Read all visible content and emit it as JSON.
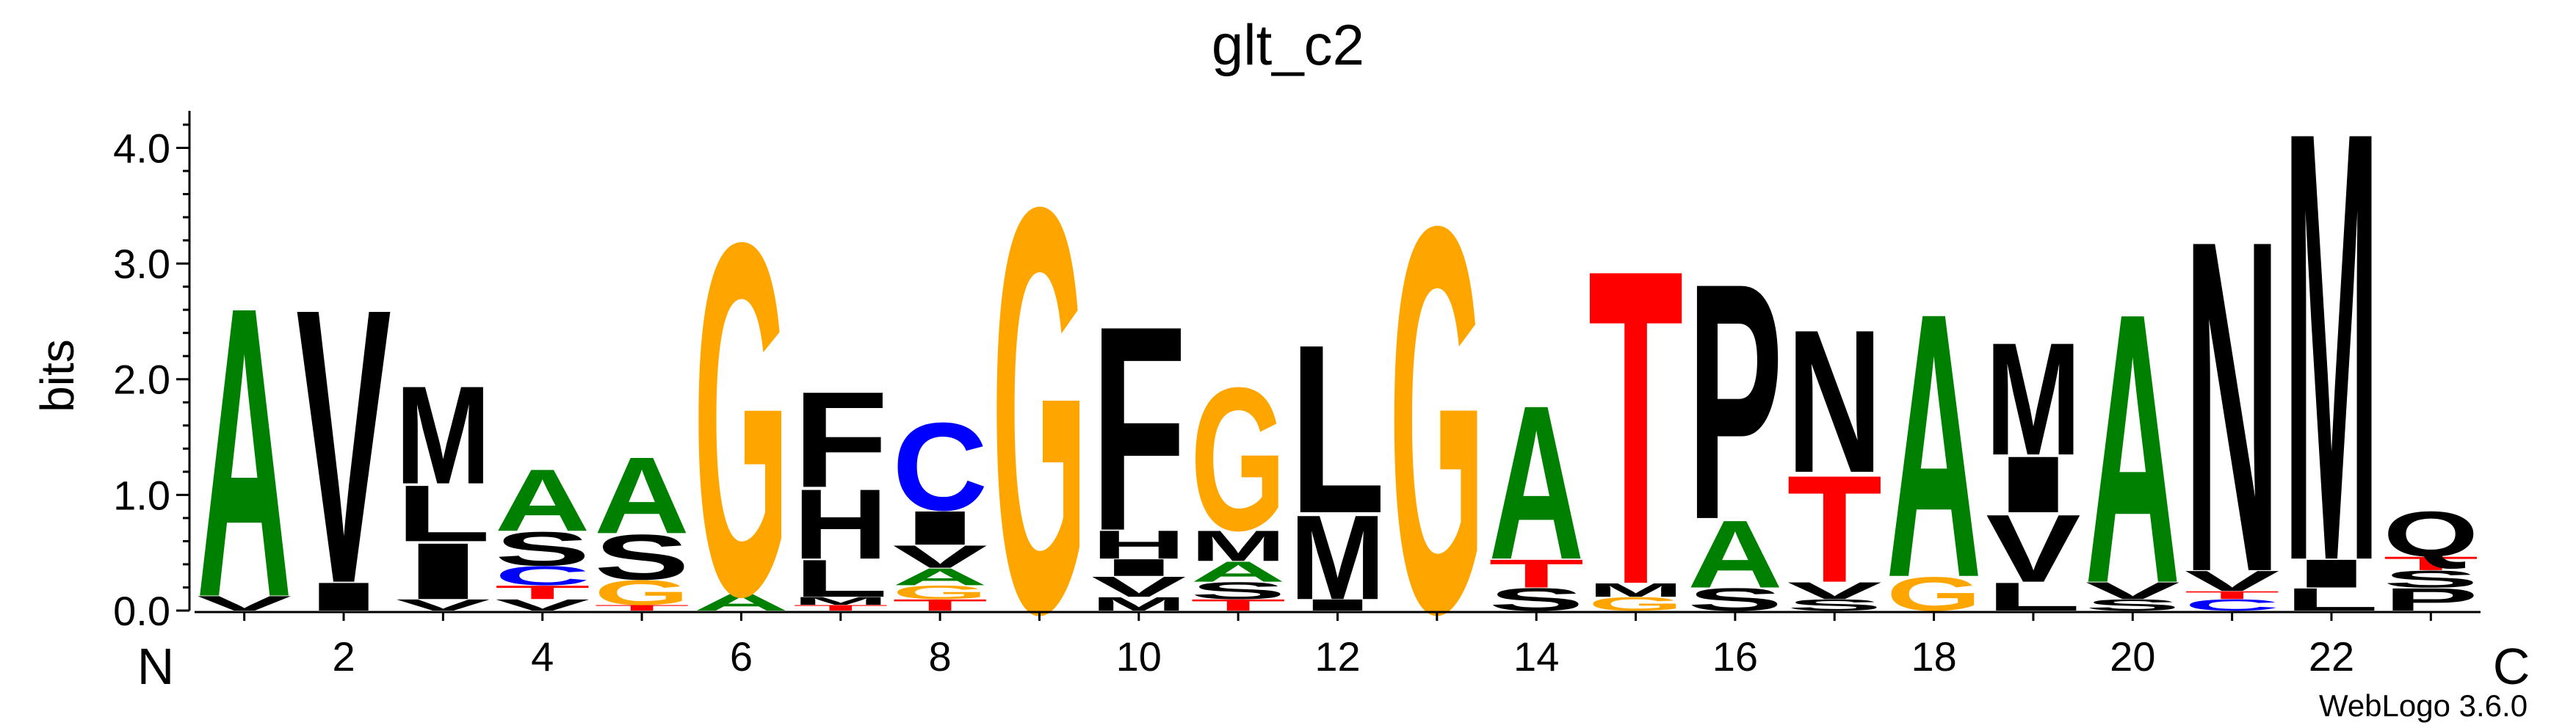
{
  "chart_data": {
    "type": "sequence-logo",
    "title": "glt_c2",
    "ylabel": "bits",
    "ylim": [
      0,
      4.32
    ],
    "yticks": [
      "0.0",
      "1.0",
      "2.0",
      "3.0",
      "4.0"
    ],
    "xticks": [
      "2",
      "4",
      "6",
      "8",
      "10",
      "12",
      "14",
      "16",
      "18",
      "20",
      "22"
    ],
    "n_terminal_label": "N",
    "c_terminal_label": "C",
    "footer": "WebLogo 3.6.0",
    "colors": {
      "A": "#008000",
      "G": "#ffa500",
      "C": "#0000ff",
      "T": "#ff0000",
      "S": "#000000",
      "V": "#000000",
      "L": "#000000",
      "M": "#000000",
      "I": "#000000",
      "F": "#000000",
      "H": "#000000",
      "P": "#000000",
      "N": "#000000",
      "Q": "#000000"
    },
    "positions": [
      {
        "pos": 1,
        "stack": [
          [
            "V",
            0.13
          ],
          [
            "A",
            2.58
          ]
        ]
      },
      {
        "pos": 2,
        "stack": [
          [
            "I",
            0.25
          ],
          [
            "V",
            2.44
          ]
        ]
      },
      {
        "pos": 3,
        "stack": [
          [
            "V",
            0.1
          ],
          [
            "I",
            0.5
          ],
          [
            "L",
            0.5
          ],
          [
            "M",
            0.87
          ]
        ]
      },
      {
        "pos": 4,
        "stack": [
          [
            "V",
            0.1
          ],
          [
            "T",
            0.12
          ],
          [
            "C",
            0.17
          ],
          [
            "S",
            0.3
          ],
          [
            "A",
            0.55
          ]
        ]
      },
      {
        "pos": 5,
        "stack": [
          [
            "T",
            0.05
          ],
          [
            "G",
            0.22
          ],
          [
            "S",
            0.4
          ],
          [
            "A",
            0.68
          ]
        ]
      },
      {
        "pos": 6,
        "stack": [
          [
            "A",
            0.15
          ],
          [
            "G",
            3.13
          ]
        ]
      },
      {
        "pos": 7,
        "stack": [
          [
            "T",
            0.05
          ],
          [
            "M",
            0.07
          ],
          [
            "L",
            0.33
          ],
          [
            "H",
            0.62
          ],
          [
            "F",
            0.85
          ]
        ]
      },
      {
        "pos": 8,
        "stack": [
          [
            "T",
            0.1
          ],
          [
            "G",
            0.12
          ],
          [
            "A",
            0.15
          ],
          [
            "V",
            0.2
          ],
          [
            "I",
            0.3
          ],
          [
            "C",
            0.78
          ]
        ]
      },
      {
        "pos": 9,
        "stack": [
          [
            "G",
            3.6
          ]
        ]
      },
      {
        "pos": 10,
        "stack": [
          [
            "M",
            0.12
          ],
          [
            "V",
            0.18
          ],
          [
            "I",
            0.15
          ],
          [
            "H",
            0.25
          ],
          [
            "F",
            1.82
          ]
        ]
      },
      {
        "pos": 11,
        "stack": [
          [
            "T",
            0.1
          ],
          [
            "S",
            0.15
          ],
          [
            "A",
            0.18
          ],
          [
            "M",
            0.27
          ],
          [
            "G",
            1.27
          ]
        ]
      },
      {
        "pos": 12,
        "stack": [
          [
            "I",
            0.1
          ],
          [
            "M",
            0.75
          ],
          [
            "L",
            1.5
          ]
        ]
      },
      {
        "pos": 13,
        "stack": [
          [
            "G",
            3.43
          ]
        ]
      },
      {
        "pos": 14,
        "stack": [
          [
            "S",
            0.2
          ],
          [
            "T",
            0.25
          ],
          [
            "A",
            1.37
          ]
        ]
      },
      {
        "pos": 15,
        "stack": [
          [
            "G",
            0.12
          ],
          [
            "M",
            0.12
          ],
          [
            "T",
            2.8
          ]
        ]
      },
      {
        "pos": 16,
        "stack": [
          [
            "S",
            0.2
          ],
          [
            "A",
            0.6
          ],
          [
            "P",
            2.1
          ]
        ]
      },
      {
        "pos": 17,
        "stack": [
          [
            "S",
            0.1
          ],
          [
            "V",
            0.15
          ],
          [
            "T",
            0.95
          ],
          [
            "N",
            1.27
          ]
        ]
      },
      {
        "pos": 18,
        "stack": [
          [
            "G",
            0.3
          ],
          [
            "A",
            2.35
          ]
        ]
      },
      {
        "pos": 19,
        "stack": [
          [
            "L",
            0.25
          ],
          [
            "V",
            0.6
          ],
          [
            "I",
            0.5
          ],
          [
            "M",
            1.0
          ]
        ]
      },
      {
        "pos": 20,
        "stack": [
          [
            "S",
            0.1
          ],
          [
            "V",
            0.15
          ],
          [
            "A",
            2.4
          ]
        ]
      },
      {
        "pos": 21,
        "stack": [
          [
            "C",
            0.1
          ],
          [
            "T",
            0.07
          ],
          [
            "V",
            0.18
          ],
          [
            "N",
            2.95
          ]
        ]
      },
      {
        "pos": 22,
        "stack": [
          [
            "L",
            0.2
          ],
          [
            "I",
            0.25
          ],
          [
            "M",
            3.82
          ]
        ]
      },
      {
        "pos": 23,
        "stack": [
          [
            "P",
            0.2
          ],
          [
            "S",
            0.15
          ],
          [
            "T",
            0.12
          ],
          [
            "Q",
            0.4
          ]
        ]
      }
    ]
  }
}
